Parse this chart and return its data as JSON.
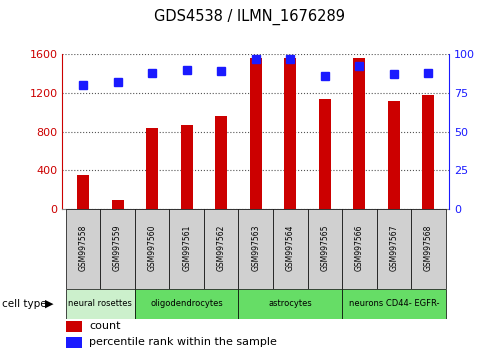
{
  "title": "GDS4538 / ILMN_1676289",
  "samples": [
    "GSM997558",
    "GSM997559",
    "GSM997560",
    "GSM997561",
    "GSM997562",
    "GSM997563",
    "GSM997564",
    "GSM997565",
    "GSM997566",
    "GSM997567",
    "GSM997568"
  ],
  "counts": [
    355,
    95,
    840,
    870,
    960,
    1560,
    1560,
    1140,
    1560,
    1120,
    1180
  ],
  "percentile_ranks": [
    80,
    82,
    88,
    90,
    89,
    97,
    97,
    86,
    92,
    87,
    88
  ],
  "ylim_left": [
    0,
    1600
  ],
  "ylim_right": [
    0,
    100
  ],
  "yticks_left": [
    0,
    400,
    800,
    1200,
    1600
  ],
  "yticks_right": [
    0,
    25,
    50,
    75,
    100
  ],
  "bar_color": "#cc0000",
  "dot_color": "#1a1aff",
  "cell_type_groups": [
    {
      "label": "neural rosettes",
      "indices": [
        0,
        1
      ],
      "color": "#ccf0cc"
    },
    {
      "label": "oligodendrocytes",
      "indices": [
        2,
        3,
        4
      ],
      "color": "#66dd66"
    },
    {
      "label": "astrocytes",
      "indices": [
        5,
        6,
        7
      ],
      "color": "#66dd66"
    },
    {
      "label": "neurons CD44- EGFR-",
      "indices": [
        8,
        9,
        10
      ],
      "color": "#66dd66"
    }
  ],
  "grid_color": "#555555",
  "tick_label_color_left": "#cc0000",
  "tick_label_color_right": "#1a1aff",
  "bar_width": 0.35,
  "dot_size": 6
}
